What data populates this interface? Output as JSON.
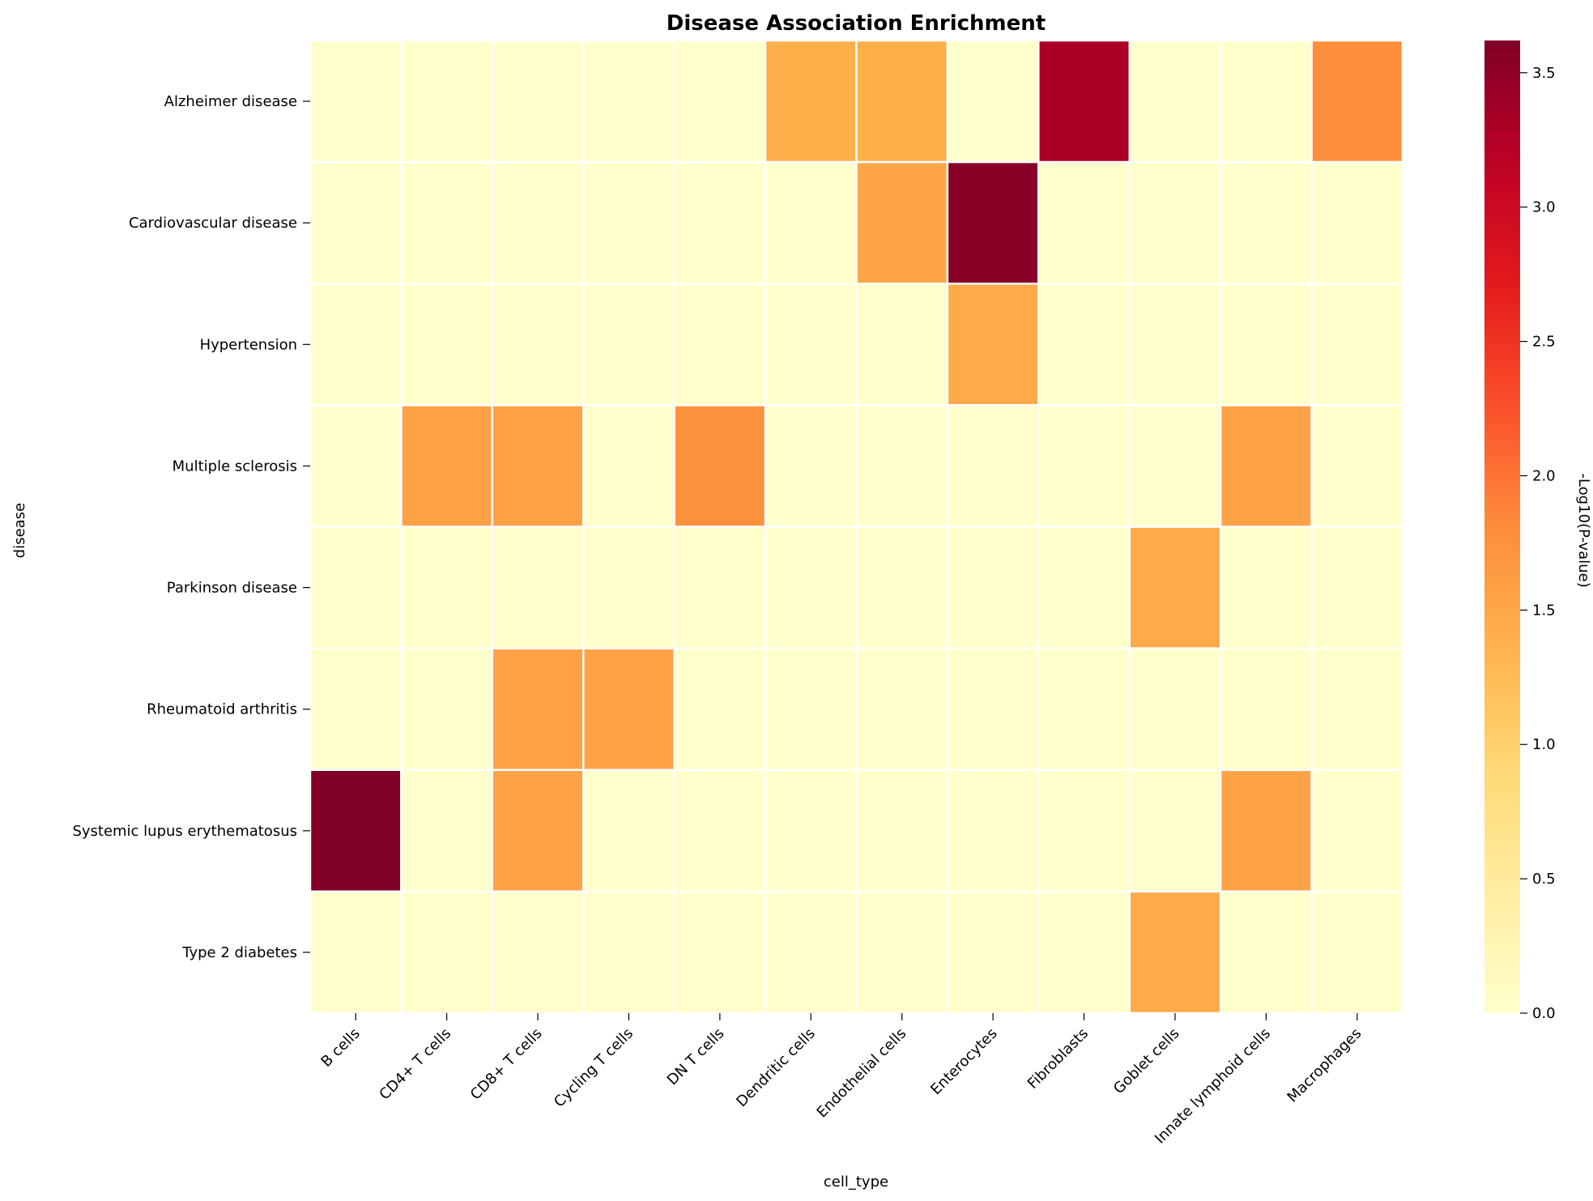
{
  "chart_data": {
    "type": "heatmap",
    "title": "Disease Association Enrichment",
    "xlabel": "cell_type",
    "ylabel": "disease",
    "x_categories": [
      "B cells",
      "CD4+ T cells",
      "CD8+ T cells",
      "Cycling T cells",
      "DN T cells",
      "Dendritic cells",
      "Endothelial cells",
      "Enterocytes",
      "Fibroblasts",
      "Goblet cells",
      "Innate lymphoid cells",
      "Macrophages"
    ],
    "y_categories": [
      "Alzheimer disease",
      "Cardiovascular disease",
      "Hypertension",
      "Multiple sclerosis",
      "Parkinson disease",
      "Rheumatoid arthritis",
      "Systemic lupus erythematosus",
      "Type 2 diabetes"
    ],
    "values": [
      [
        0,
        0,
        0,
        0,
        0,
        1.4,
        1.4,
        0,
        3.3,
        0,
        0,
        1.8
      ],
      [
        0,
        0,
        0,
        0,
        0,
        0,
        1.5,
        3.55,
        0,
        0,
        0,
        0
      ],
      [
        0,
        0,
        0,
        0,
        0,
        0,
        0,
        1.45,
        0,
        0,
        0,
        0
      ],
      [
        0,
        1.55,
        1.55,
        0,
        1.75,
        0,
        0,
        0,
        0,
        0,
        1.55,
        0
      ],
      [
        0,
        0,
        0,
        0,
        0,
        0,
        0,
        0,
        0,
        1.45,
        0,
        0
      ],
      [
        0,
        0,
        1.55,
        1.55,
        0,
        0,
        0,
        0,
        0,
        0,
        0,
        0
      ],
      [
        3.62,
        0,
        1.55,
        0,
        0,
        0,
        0,
        0,
        0,
        0,
        1.55,
        0
      ],
      [
        0,
        0,
        0,
        0,
        0,
        0,
        0,
        0,
        0,
        1.45,
        0,
        0
      ]
    ],
    "colorbar": {
      "label": "-Log10(P-value)",
      "min": 0,
      "max": 3.62,
      "ticks": [
        "0.0",
        "0.5",
        "1.0",
        "1.5",
        "2.0",
        "2.5",
        "3.0",
        "3.5"
      ],
      "colormap": "YlOrRd"
    }
  }
}
